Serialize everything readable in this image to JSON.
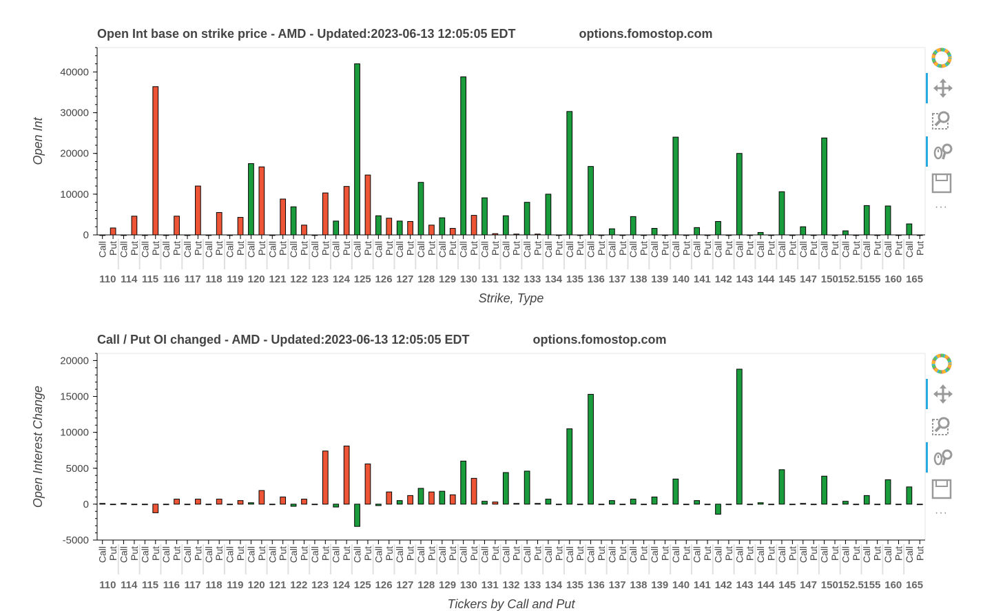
{
  "charts": [
    {
      "title": "Open Int base on strike price - AMD - Updated:2023-06-13 12:05:05 EDT",
      "watermark": "options.fomostop.com"
    },
    {
      "title": "Call / Put OI changed - AMD - Updated:2023-06-13 12:05:05 EDT",
      "watermark": "options.fomostop.com"
    }
  ],
  "toolbar": {
    "icons": [
      "bokeh-logo-icon",
      "pan-icon",
      "box-zoom-icon",
      "wheel-zoom-icon",
      "save-icon",
      "more-icon"
    ],
    "more_label": "···"
  },
  "colors": {
    "call": "#1a9c3c",
    "put": "#ee5536",
    "outline": "#000000"
  },
  "chart_data": [
    {
      "type": "bar",
      "title": "Open Int base on strike price - AMD - Updated:2023-06-13 12:05:05 EDT",
      "xlabel": "Strike, Type",
      "ylabel": "Open Int",
      "ylim": [
        0,
        46000
      ],
      "yticks": [
        0,
        10000,
        20000,
        30000,
        40000
      ],
      "legend": "none",
      "subcategories": [
        "Call",
        "Put"
      ],
      "categories": [
        "110",
        "114",
        "115",
        "116",
        "117",
        "118",
        "119",
        "120",
        "121",
        "122",
        "123",
        "124",
        "125",
        "126",
        "127",
        "128",
        "129",
        "130",
        "131",
        "132",
        "133",
        "134",
        "135",
        "136",
        "137",
        "138",
        "139",
        "140",
        "141",
        "142",
        "143",
        "144",
        "145",
        "147",
        "150",
        "152.5",
        "155",
        "160",
        "165"
      ],
      "series": [
        {
          "name": "Call",
          "values": [
            0,
            0,
            0,
            0,
            0,
            0,
            0,
            17500,
            0,
            6900,
            0,
            3400,
            42000,
            4700,
            3400,
            12900,
            4200,
            38800,
            9100,
            4700,
            8000,
            10000,
            30300,
            16800,
            1500,
            4500,
            1600,
            24000,
            1800,
            3300,
            20000,
            600,
            10600,
            2000,
            23800,
            1000,
            7200,
            7100,
            2700
          ]
        },
        {
          "name": "Put",
          "values": [
            1700,
            4600,
            36400,
            4600,
            12000,
            5500,
            4300,
            16700,
            8800,
            2400,
            10300,
            11900,
            14700,
            4100,
            3300,
            2400,
            1600,
            4800,
            300,
            200,
            200,
            0,
            0,
            0,
            0,
            0,
            0,
            0,
            0,
            0,
            0,
            0,
            0,
            0,
            0,
            0,
            0,
            0,
            0
          ]
        }
      ]
    },
    {
      "type": "bar",
      "title": "Call / Put OI changed - AMD - Updated:2023-06-13 12:05:05 EDT",
      "xlabel": "Tickers by Call and Put",
      "ylabel": "Open Interest Change",
      "ylim": [
        -5000,
        21000
      ],
      "yticks": [
        -5000,
        0,
        5000,
        10000,
        15000,
        20000
      ],
      "legend": "none",
      "subcategories": [
        "Call",
        "Put"
      ],
      "categories": [
        "110",
        "114",
        "115",
        "116",
        "117",
        "118",
        "119",
        "120",
        "121",
        "122",
        "123",
        "124",
        "125",
        "126",
        "127",
        "128",
        "129",
        "130",
        "131",
        "132",
        "133",
        "134",
        "135",
        "136",
        "137",
        "138",
        "139",
        "140",
        "141",
        "142",
        "143",
        "144",
        "145",
        "147",
        "150",
        "152.5",
        "155",
        "160",
        "165"
      ],
      "series": [
        {
          "name": "Call",
          "values": [
            100,
            100,
            0,
            0,
            0,
            0,
            0,
            200,
            0,
            -300,
            0,
            -400,
            -3100,
            -200,
            500,
            2200,
            1800,
            6000,
            400,
            4400,
            4600,
            700,
            10500,
            15300,
            500,
            700,
            1000,
            3500,
            500,
            -1400,
            18800,
            200,
            4800,
            100,
            3900,
            400,
            1200,
            3400,
            2400
          ]
        },
        {
          "name": "Put",
          "values": [
            0,
            0,
            -1200,
            700,
            700,
            700,
            500,
            1900,
            1000,
            700,
            7400,
            8100,
            5600,
            1700,
            1200,
            1700,
            1300,
            3600,
            300,
            100,
            100,
            0,
            0,
            0,
            0,
            0,
            0,
            0,
            0,
            0,
            0,
            0,
            0,
            0,
            0,
            0,
            0,
            0,
            0
          ]
        }
      ]
    }
  ]
}
